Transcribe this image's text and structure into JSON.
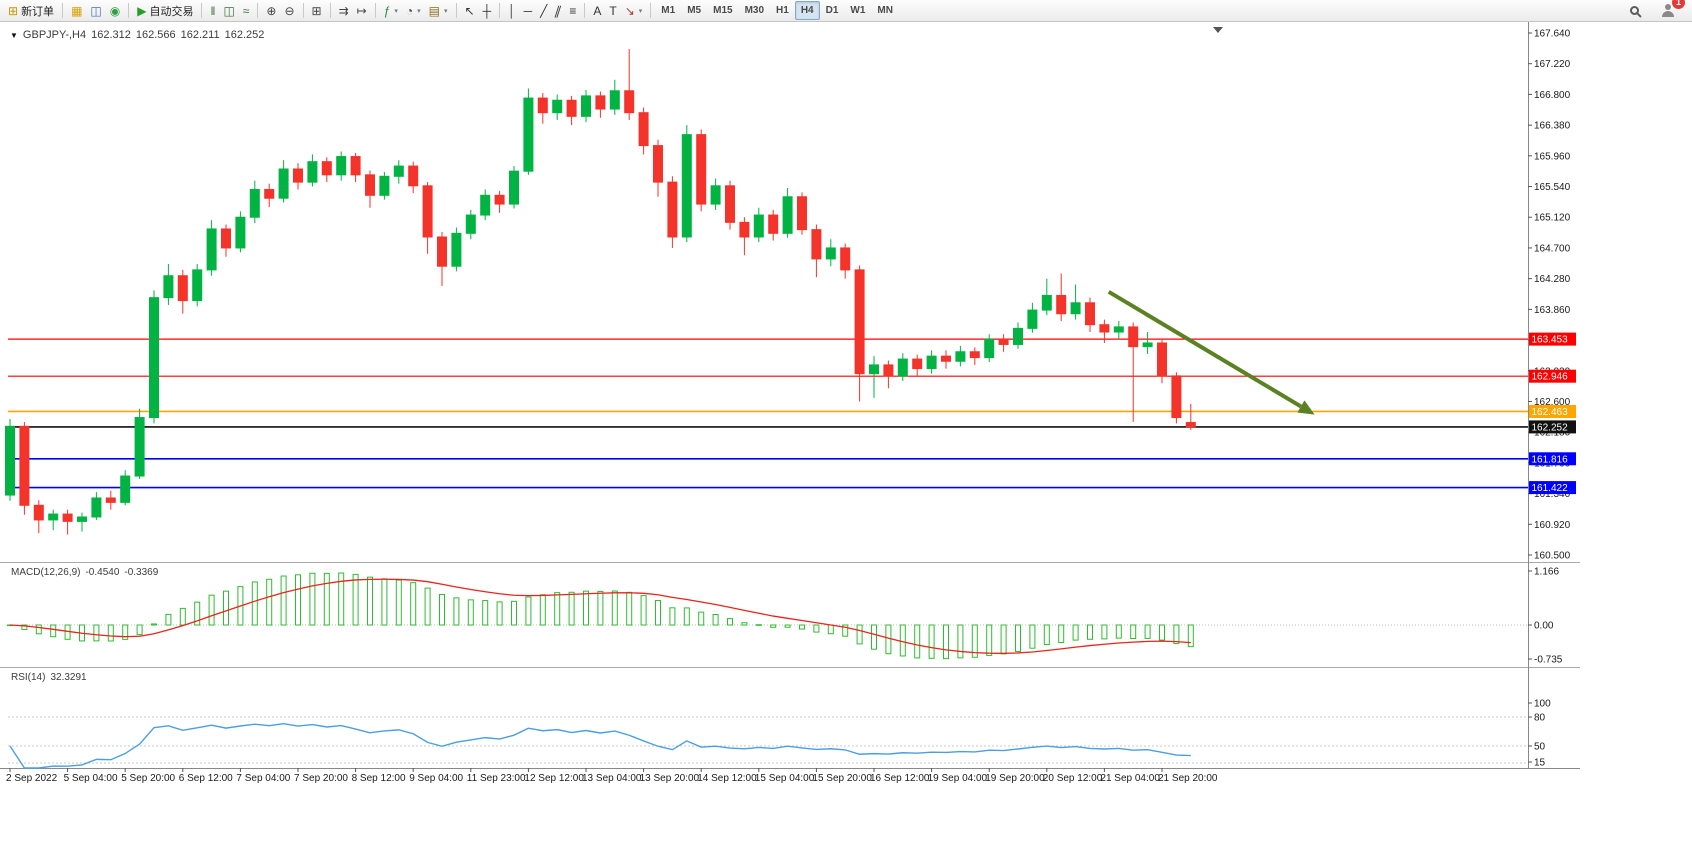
{
  "toolbar": {
    "dropdown_glyph": "▾",
    "groups": [
      [
        {
          "name": "new-order-button",
          "glyph": "⊞",
          "glyph_color": "#c99a00",
          "label": "新订单"
        }
      ],
      [
        {
          "name": "chart-list-button",
          "glyph": "▦",
          "glyph_color": "#d79f00"
        },
        {
          "name": "terminal-window-button",
          "glyph": "◫",
          "glyph_color": "#3f6fb5"
        },
        {
          "name": "refresh-button",
          "glyph": "◉",
          "glyph_color": "#2f9e44"
        }
      ],
      [
        {
          "name": "autotrading-button",
          "glyph": "▶",
          "glyph_color": "#21a121",
          "label": "自动交易"
        }
      ],
      [
        {
          "name": "bar-chart-button",
          "glyph": "‖",
          "glyph_color": "#3c6e3c"
        },
        {
          "name": "candlestick-chart-button",
          "glyph": "◫",
          "glyph_color": "#3c6e3c"
        },
        {
          "name": "line-chart-button",
          "glyph": "≈",
          "glyph_color": "#3c6e3c"
        }
      ],
      [
        {
          "name": "zoom-in-button",
          "glyph": "⊕",
          "glyph_color": "#444444"
        },
        {
          "name": "zoom-out-button",
          "glyph": "⊖",
          "glyph_color": "#444444"
        }
      ],
      [
        {
          "name": "tile-windows-button",
          "glyph": "⊞",
          "glyph_color": "#444444"
        }
      ],
      [
        {
          "name": "auto-scroll-button",
          "glyph": "⇉",
          "glyph_color": "#444444"
        },
        {
          "name": "chart-shift-button",
          "glyph": "↦",
          "glyph_color": "#444444"
        }
      ],
      [
        {
          "name": "indicators-button",
          "glyph": "ƒ",
          "glyph_color": "#1e8e3e",
          "dropdown": true
        },
        {
          "name": "periods-button",
          "glyph": "◔",
          "glyph_color": "#444444",
          "dropdown": true
        },
        {
          "name": "templates-button",
          "glyph": "▤",
          "glyph_color": "#8a6d1a",
          "dropdown": true
        }
      ],
      [
        {
          "name": "cursor-button",
          "glyph": "↖",
          "glyph_color": "#333333"
        },
        {
          "name": "crosshair-button",
          "glyph": "┼",
          "glyph_color": "#333333"
        }
      ],
      [
        {
          "name": "vertical-line-button",
          "glyph": "│",
          "glyph_color": "#333333"
        },
        {
          "name": "horizontal-line-button",
          "glyph": "─",
          "glyph_color": "#333333"
        },
        {
          "name": "trendline-button",
          "glyph": "╱",
          "glyph_color": "#333333"
        },
        {
          "name": "channel-button",
          "glyph": "∥",
          "glyph_color": "#333333",
          "slant": true
        },
        {
          "name": "fibonacci-button",
          "glyph": "≡",
          "glyph_color": "#333333"
        }
      ],
      [
        {
          "name": "text-button",
          "glyph": "A",
          "glyph_color": "#333333"
        },
        {
          "name": "label-button",
          "glyph": "T",
          "glyph_color": "#333333"
        },
        {
          "name": "arrows-button",
          "glyph": "↘",
          "glyph_color": "#a33c2e",
          "dropdown": true
        }
      ]
    ],
    "timeframes": [
      "M1",
      "M5",
      "M15",
      "M30",
      "H1",
      "H4",
      "D1",
      "W1",
      "MN"
    ],
    "active_timeframe": "H4",
    "right": {
      "badge": "1"
    }
  },
  "chart": {
    "dropdown_glyph": "▼",
    "symbol": "GBPJPY-,H4",
    "open": "162.312",
    "high": "162.566",
    "low": "162.211",
    "close": "162.252"
  },
  "indicators": {
    "macd": {
      "label": "MACD(12,26,9)",
      "value1": "-0.4540",
      "value2": "-0.3369",
      "fast": 12,
      "slow": 26,
      "signal": 9,
      "scale": [
        "1.166",
        "0.00",
        "-0.735"
      ]
    },
    "rsi": {
      "label": "RSI(14)",
      "value": "32.3291",
      "period": 14,
      "scale": [
        "100",
        "80",
        "50",
        "15"
      ]
    }
  },
  "chart_data": {
    "type": "candlestick",
    "symbol": "GBPJPY-",
    "timeframe": "H4",
    "ohlc_current": {
      "open": 162.312,
      "high": 162.566,
      "low": 162.211,
      "close": 162.252
    },
    "price_range": {
      "max": 167.64,
      "min": 160.5
    },
    "price_ticks": [
      167.64,
      167.22,
      166.8,
      166.38,
      165.96,
      165.54,
      165.12,
      164.7,
      164.28,
      163.86,
      163.44,
      163.02,
      162.6,
      162.18,
      161.76,
      161.34,
      160.92,
      160.5
    ],
    "current_price": 162.252,
    "levels": [
      {
        "price": 163.453,
        "color": "#FF0000",
        "label": "163.453",
        "width": 1.2
      },
      {
        "price": 162.946,
        "color": "#FF0000",
        "label": "162.946",
        "width": 1.2
      },
      {
        "price": 162.463,
        "color": "#FFA500",
        "label": "162.463",
        "width": 1.6
      },
      {
        "price": 161.816,
        "color": "#0000FF",
        "label": "161.816",
        "width": 1.6
      },
      {
        "price": 161.422,
        "color": "#0000FF",
        "label": "161.422",
        "width": 1.6
      }
    ],
    "trend_arrow": {
      "from_bar": 76.3,
      "from_price": 164.1,
      "to_bar": 90.6,
      "to_price": 162.42,
      "color": "#5a8122"
    },
    "colors": {
      "bull": "#00b342",
      "bear": "#f4332a",
      "macd_hist": "#2ebd2e",
      "macd_signal": "#e8241c",
      "rsi": "#4a9fe3"
    },
    "candles": [
      [
        161.32,
        162.36,
        161.24,
        162.26
      ],
      [
        162.26,
        162.32,
        161.05,
        161.18
      ],
      [
        161.18,
        161.25,
        160.8,
        160.98
      ],
      [
        160.98,
        161.12,
        160.84,
        161.06
      ],
      [
        161.06,
        161.12,
        160.78,
        160.96
      ],
      [
        160.96,
        161.08,
        160.82,
        161.02
      ],
      [
        161.02,
        161.36,
        160.98,
        161.28
      ],
      [
        161.28,
        161.38,
        161.12,
        161.22
      ],
      [
        161.22,
        161.66,
        161.18,
        161.58
      ],
      [
        161.58,
        162.5,
        161.54,
        162.38
      ],
      [
        162.38,
        164.12,
        162.3,
        164.02
      ],
      [
        164.02,
        164.48,
        163.92,
        164.32
      ],
      [
        164.32,
        164.4,
        163.8,
        163.98
      ],
      [
        163.98,
        164.48,
        163.9,
        164.4
      ],
      [
        164.4,
        165.08,
        164.32,
        164.96
      ],
      [
        164.96,
        165.02,
        164.58,
        164.7
      ],
      [
        164.7,
        165.2,
        164.64,
        165.12
      ],
      [
        165.12,
        165.62,
        165.04,
        165.5
      ],
      [
        165.5,
        165.58,
        165.26,
        165.38
      ],
      [
        165.38,
        165.9,
        165.32,
        165.78
      ],
      [
        165.78,
        165.86,
        165.5,
        165.6
      ],
      [
        165.6,
        165.98,
        165.54,
        165.88
      ],
      [
        165.88,
        165.94,
        165.6,
        165.7
      ],
      [
        165.7,
        166.02,
        165.62,
        165.95
      ],
      [
        165.95,
        166.0,
        165.6,
        165.7
      ],
      [
        165.7,
        165.76,
        165.25,
        165.42
      ],
      [
        165.42,
        165.74,
        165.36,
        165.68
      ],
      [
        165.68,
        165.9,
        165.58,
        165.82
      ],
      [
        165.82,
        165.88,
        165.45,
        165.55
      ],
      [
        165.55,
        165.6,
        164.62,
        164.85
      ],
      [
        164.85,
        164.92,
        164.18,
        164.45
      ],
      [
        164.45,
        164.98,
        164.38,
        164.9
      ],
      [
        164.9,
        165.22,
        164.82,
        165.15
      ],
      [
        165.15,
        165.5,
        165.08,
        165.42
      ],
      [
        165.42,
        165.48,
        165.18,
        165.3
      ],
      [
        165.3,
        165.82,
        165.24,
        165.75
      ],
      [
        165.75,
        166.88,
        165.7,
        166.75
      ],
      [
        166.75,
        166.82,
        166.4,
        166.55
      ],
      [
        166.55,
        166.8,
        166.45,
        166.72
      ],
      [
        166.72,
        166.78,
        166.38,
        166.5
      ],
      [
        166.5,
        166.86,
        166.42,
        166.78
      ],
      [
        166.78,
        166.84,
        166.48,
        166.6
      ],
      [
        166.6,
        167.0,
        166.52,
        166.85
      ],
      [
        166.85,
        167.42,
        166.45,
        166.55
      ],
      [
        166.55,
        166.62,
        165.98,
        166.1
      ],
      [
        166.1,
        166.18,
        165.4,
        165.6
      ],
      [
        165.6,
        165.68,
        164.7,
        164.85
      ],
      [
        164.85,
        166.38,
        164.78,
        166.25
      ],
      [
        166.25,
        166.32,
        165.2,
        165.3
      ],
      [
        165.3,
        165.65,
        165.22,
        165.55
      ],
      [
        165.55,
        165.62,
        164.95,
        165.05
      ],
      [
        165.05,
        165.12,
        164.6,
        164.85
      ],
      [
        164.85,
        165.25,
        164.78,
        165.15
      ],
      [
        165.15,
        165.22,
        164.8,
        164.9
      ],
      [
        164.9,
        165.52,
        164.84,
        165.4
      ],
      [
        165.4,
        165.46,
        164.88,
        164.95
      ],
      [
        164.95,
        165.02,
        164.3,
        164.55
      ],
      [
        164.55,
        164.82,
        164.45,
        164.7
      ],
      [
        164.7,
        164.76,
        164.28,
        164.4
      ],
      [
        164.4,
        164.46,
        162.6,
        162.98
      ],
      [
        162.98,
        163.22,
        162.65,
        163.1
      ],
      [
        163.1,
        163.16,
        162.78,
        162.95
      ],
      [
        162.95,
        163.26,
        162.88,
        163.18
      ],
      [
        163.18,
        163.24,
        162.95,
        163.05
      ],
      [
        163.05,
        163.3,
        162.98,
        163.22
      ],
      [
        163.22,
        163.3,
        163.05,
        163.15
      ],
      [
        163.15,
        163.36,
        163.08,
        163.28
      ],
      [
        163.28,
        163.34,
        163.1,
        163.2
      ],
      [
        163.2,
        163.52,
        163.14,
        163.45
      ],
      [
        163.45,
        163.52,
        163.28,
        163.38
      ],
      [
        163.38,
        163.68,
        163.32,
        163.6
      ],
      [
        163.6,
        163.95,
        163.54,
        163.85
      ],
      [
        163.85,
        164.28,
        163.78,
        164.05
      ],
      [
        164.05,
        164.35,
        163.7,
        163.8
      ],
      [
        163.8,
        164.2,
        163.72,
        163.95
      ],
      [
        163.95,
        164.02,
        163.55,
        163.65
      ],
      [
        163.65,
        163.72,
        163.4,
        163.55
      ],
      [
        163.55,
        163.7,
        163.45,
        163.62
      ],
      [
        163.62,
        163.68,
        162.32,
        163.35
      ],
      [
        163.35,
        163.55,
        163.25,
        163.4
      ],
      [
        163.4,
        163.46,
        162.85,
        162.95
      ],
      [
        162.95,
        163.0,
        162.3,
        162.38
      ],
      [
        162.312,
        162.566,
        162.211,
        162.252
      ]
    ],
    "time_labels": [
      {
        "bar": 0,
        "text": "2 Sep 2022"
      },
      {
        "bar": 4,
        "text": "5 Sep 04:00"
      },
      {
        "bar": 8,
        "text": "5 Sep 20:00"
      },
      {
        "bar": 12,
        "text": "6 Sep 12:00"
      },
      {
        "bar": 16,
        "text": "7 Sep 04:00"
      },
      {
        "bar": 20,
        "text": "7 Sep 20:00"
      },
      {
        "bar": 24,
        "text": "8 Sep 12:00"
      },
      {
        "bar": 28,
        "text": "9 Sep 04:00"
      },
      {
        "bar": 32,
        "text": "11 Sep 23:00"
      },
      {
        "bar": 36,
        "text": "12 Sep 12:00"
      },
      {
        "bar": 40,
        "text": "13 Sep 04:00"
      },
      {
        "bar": 44,
        "text": "13 Sep 20:00"
      },
      {
        "bar": 48,
        "text": "14 Sep 12:00"
      },
      {
        "bar": 52,
        "text": "15 Sep 04:00"
      },
      {
        "bar": 56,
        "text": "15 Sep 20:00"
      },
      {
        "bar": 60,
        "text": "16 Sep 12:00"
      },
      {
        "bar": 64,
        "text": "19 Sep 04:00"
      },
      {
        "bar": 68,
        "text": "19 Sep 20:00"
      },
      {
        "bar": 72,
        "text": "20 Sep 12:00"
      },
      {
        "bar": 76,
        "text": "21 Sep 04:00"
      },
      {
        "bar": 80,
        "text": "21 Sep 20:00"
      }
    ]
  }
}
